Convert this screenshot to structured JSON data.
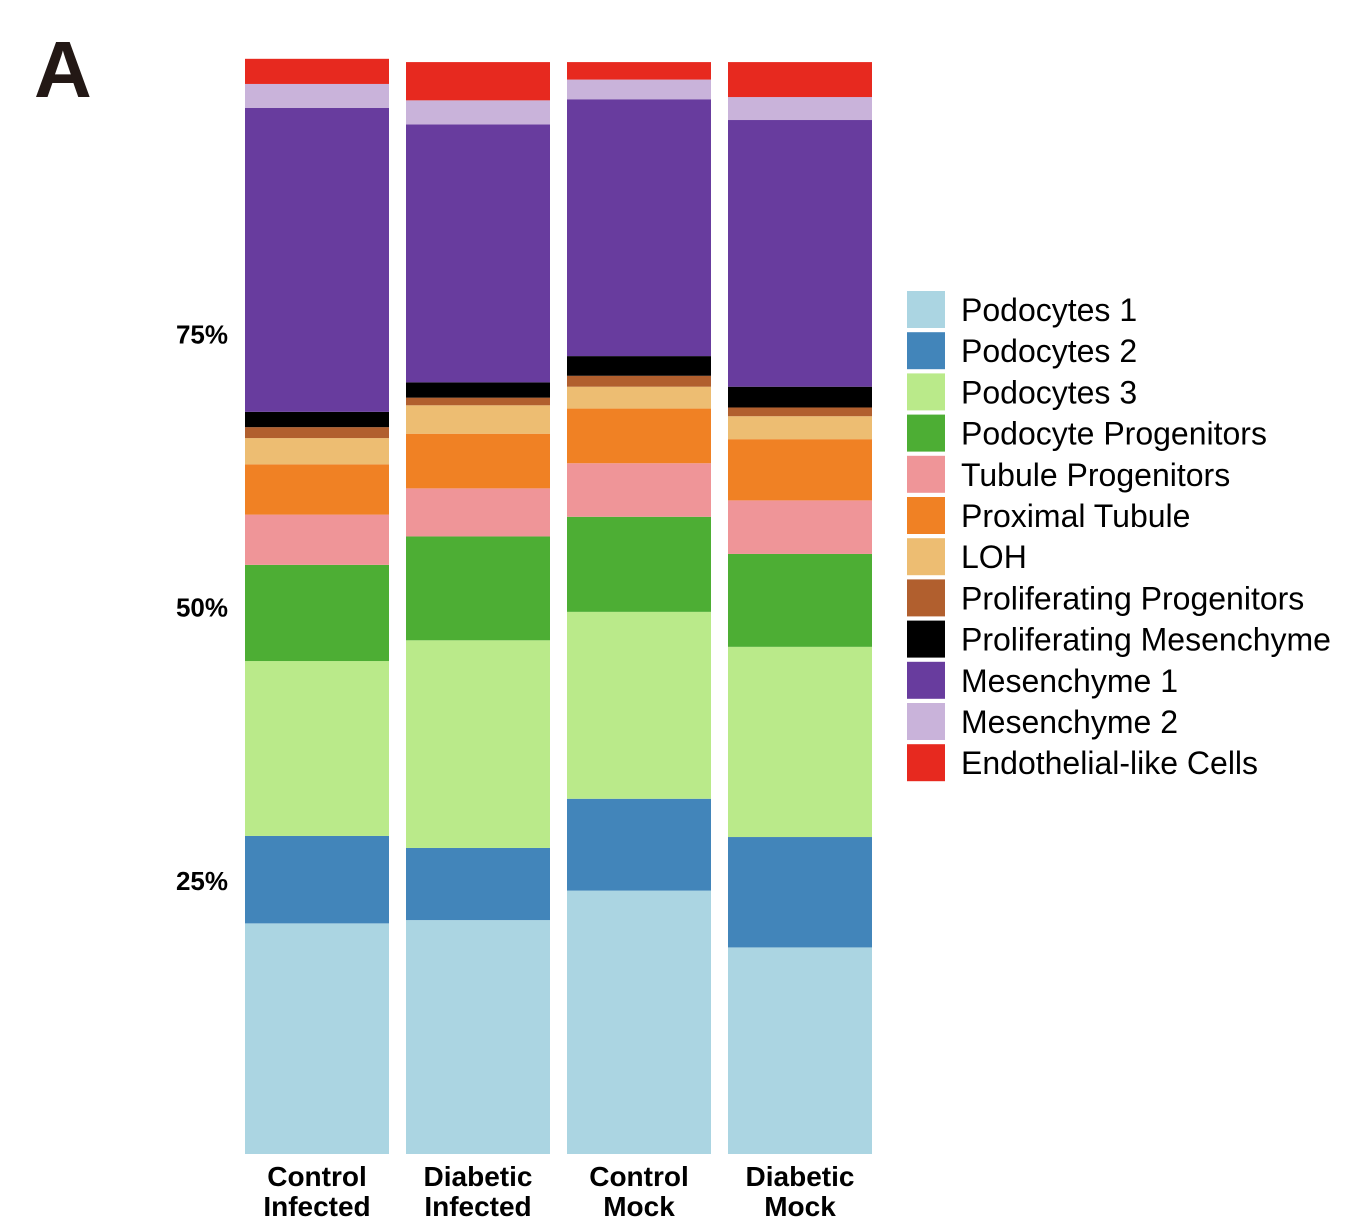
{
  "panel_label": "A",
  "chart_data": {
    "type": "bar",
    "stacked": true,
    "ylim": [
      0,
      100
    ],
    "yticks": [
      25,
      50,
      75
    ],
    "ytick_labels": [
      "25%",
      "50%",
      "75%"
    ],
    "categories": [
      [
        "Control",
        "Infected"
      ],
      [
        "Diabetic",
        "Infected"
      ],
      [
        "Control",
        "Mock"
      ],
      [
        "Diabetic",
        "Mock"
      ]
    ],
    "legend_position": "right",
    "grid": false,
    "series": [
      {
        "name": "Podocytes 1",
        "color": "#ABD5E2",
        "values": [
          21.1,
          21.4,
          24.1,
          18.9
        ]
      },
      {
        "name": "Podocytes 2",
        "color": "#4285BA",
        "values": [
          8.0,
          6.6,
          8.4,
          10.1
        ]
      },
      {
        "name": "Podocytes 3",
        "color": "#BAEA8A",
        "values": [
          16.0,
          19.0,
          17.1,
          17.4
        ]
      },
      {
        "name": "Podocyte Progenitors",
        "color": "#4DAE34",
        "values": [
          8.8,
          9.5,
          8.7,
          8.5
        ]
      },
      {
        "name": "Tubule Progenitors",
        "color": "#EF9598",
        "values": [
          4.6,
          4.4,
          4.9,
          4.9
        ]
      },
      {
        "name": "Proximal Tubule",
        "color": "#F08124",
        "values": [
          4.6,
          5.0,
          5.0,
          5.6
        ]
      },
      {
        "name": "LOH",
        "color": "#EDBD72",
        "values": [
          2.4,
          2.6,
          2.0,
          2.1
        ]
      },
      {
        "name": "Proliferating Progenitors",
        "color": "#B15F2E",
        "values": [
          1.0,
          0.7,
          1.0,
          0.8
        ]
      },
      {
        "name": "Proliferating Mesenchyme",
        "color": "#000000",
        "values": [
          1.4,
          1.4,
          1.8,
          1.9
        ]
      },
      {
        "name": "Mesenchyme 1",
        "color": "#683C9E",
        "values": [
          27.8,
          23.6,
          23.5,
          24.4
        ]
      },
      {
        "name": "Mesenchyme 2",
        "color": "#C9B3DA",
        "values": [
          2.2,
          2.2,
          1.8,
          2.1
        ]
      },
      {
        "name": "Endothelial-like Cells",
        "color": "#E7291F",
        "values": [
          2.3,
          3.5,
          1.6,
          3.2
        ]
      }
    ]
  }
}
